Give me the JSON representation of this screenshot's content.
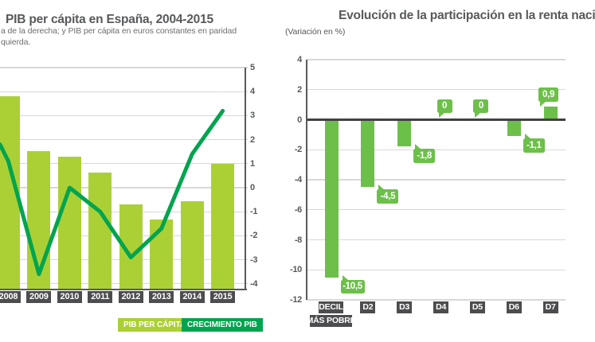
{
  "colors": {
    "bar_light_green": "#abd036",
    "line_dark_green": "#00a44f",
    "bar_medium_green": "#6cc04a",
    "bubble_green": "#6cc04a",
    "label_box_dark": "#4d4d4f",
    "title_gray": "#58595b",
    "subtitle_gray": "#6d6e71",
    "gridline_gray": "#d8d8d9",
    "zero_line_dark": "#414042"
  },
  "chart_data": [
    {
      "type": "combo-bar-line",
      "title": "PIB per cápita en España, 2004-2015",
      "subtitle_line1": "a de la derecha; y PIB per cápita en euros constantes en paridad",
      "subtitle_line2": "quierda.",
      "categories": [
        "2008",
        "2009",
        "2010",
        "2011",
        "2012",
        "2013",
        "2014",
        "2015"
      ],
      "right_axis_ticks": [
        5,
        4,
        3,
        2,
        1,
        0,
        -1,
        -2,
        -3,
        -4
      ],
      "left_axis_visible": false,
      "series": [
        {
          "name": "PIB PER CÁPITA",
          "type": "bar",
          "height_pct_of_plot": [
            87.1,
            62.4,
            59.9,
            52.7,
            38.4,
            31.5,
            39.8,
            56.6
          ]
        },
        {
          "name": "CRECIMIENTO PIB",
          "type": "line",
          "values": [
            1.1,
            -3.6,
            0.0,
            -1.0,
            -2.9,
            -1.7,
            1.4,
            3.2
          ],
          "entry_value_at_left_crop": 1.8
        }
      ],
      "legend": [
        {
          "label": "PIB PER CÁPITA"
        },
        {
          "label": "CRECIMIENTO PIB"
        }
      ]
    },
    {
      "type": "bar",
      "title": "Evolución de la participación en la renta naci",
      "subtitle": "(Variación en %)",
      "categories": [
        [
          "DECIL",
          "MÁS POBRE"
        ],
        [
          "D2"
        ],
        [
          "D3"
        ],
        [
          "D4"
        ],
        [
          "D5"
        ],
        [
          "D6"
        ],
        [
          "D7"
        ]
      ],
      "values": [
        -10.5,
        -4.5,
        -1.8,
        0,
        0,
        -1.1,
        0.9
      ],
      "value_labels": [
        "-10,5",
        "-4,5",
        "-1,8",
        "0",
        "0",
        "-1,1",
        "0,9"
      ],
      "y_ticks": [
        4,
        2,
        0,
        -2,
        -4,
        -6,
        -8,
        -10,
        -12
      ],
      "ylim": [
        -12,
        4
      ],
      "grid": true
    }
  ]
}
